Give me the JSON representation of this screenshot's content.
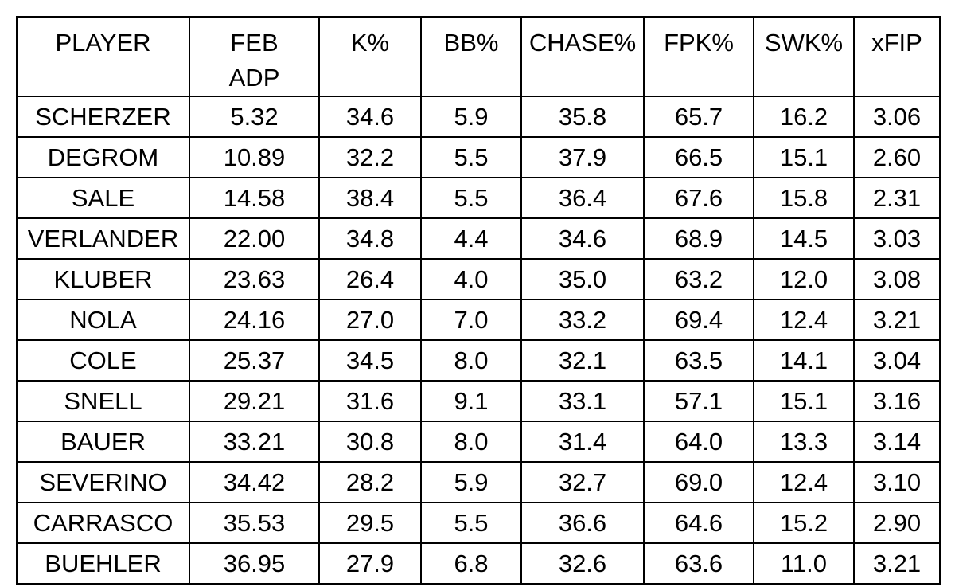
{
  "table": {
    "header": [
      "PLAYER",
      "FEB\nADP",
      "K%",
      "BB%",
      "CHASE%",
      "FPK%",
      "SWK%",
      "xFIP"
    ],
    "rows": [
      [
        "SCHERZER",
        "5.32",
        "34.6",
        "5.9",
        "35.8",
        "65.7",
        "16.2",
        "3.06"
      ],
      [
        "DEGROM",
        "10.89",
        "32.2",
        "5.5",
        "37.9",
        "66.5",
        "15.1",
        "2.60"
      ],
      [
        "SALE",
        "14.58",
        "38.4",
        "5.5",
        "36.4",
        "67.6",
        "15.8",
        "2.31"
      ],
      [
        "VERLANDER",
        "22.00",
        "34.8",
        "4.4",
        "34.6",
        "68.9",
        "14.5",
        "3.03"
      ],
      [
        "KLUBER",
        "23.63",
        "26.4",
        "4.0",
        "35.0",
        "63.2",
        "12.0",
        "3.08"
      ],
      [
        "NOLA",
        "24.16",
        "27.0",
        "7.0",
        "33.2",
        "69.4",
        "12.4",
        "3.21"
      ],
      [
        "COLE",
        "25.37",
        "34.5",
        "8.0",
        "32.1",
        "63.5",
        "14.1",
        "3.04"
      ],
      [
        "SNELL",
        "29.21",
        "31.6",
        "9.1",
        "33.1",
        "57.1",
        "15.1",
        "3.16"
      ],
      [
        "BAUER",
        "33.21",
        "30.8",
        "8.0",
        "31.4",
        "64.0",
        "13.3",
        "3.14"
      ],
      [
        "SEVERINO",
        "34.42",
        "28.2",
        "5.9",
        "32.7",
        "69.0",
        "12.4",
        "3.10"
      ],
      [
        "CARRASCO",
        "35.53",
        "29.5",
        "5.5",
        "36.6",
        "64.6",
        "15.2",
        "2.90"
      ],
      [
        "BUEHLER",
        "36.95",
        "27.9",
        "6.8",
        "32.6",
        "63.6",
        "11.0",
        "3.21"
      ]
    ]
  }
}
